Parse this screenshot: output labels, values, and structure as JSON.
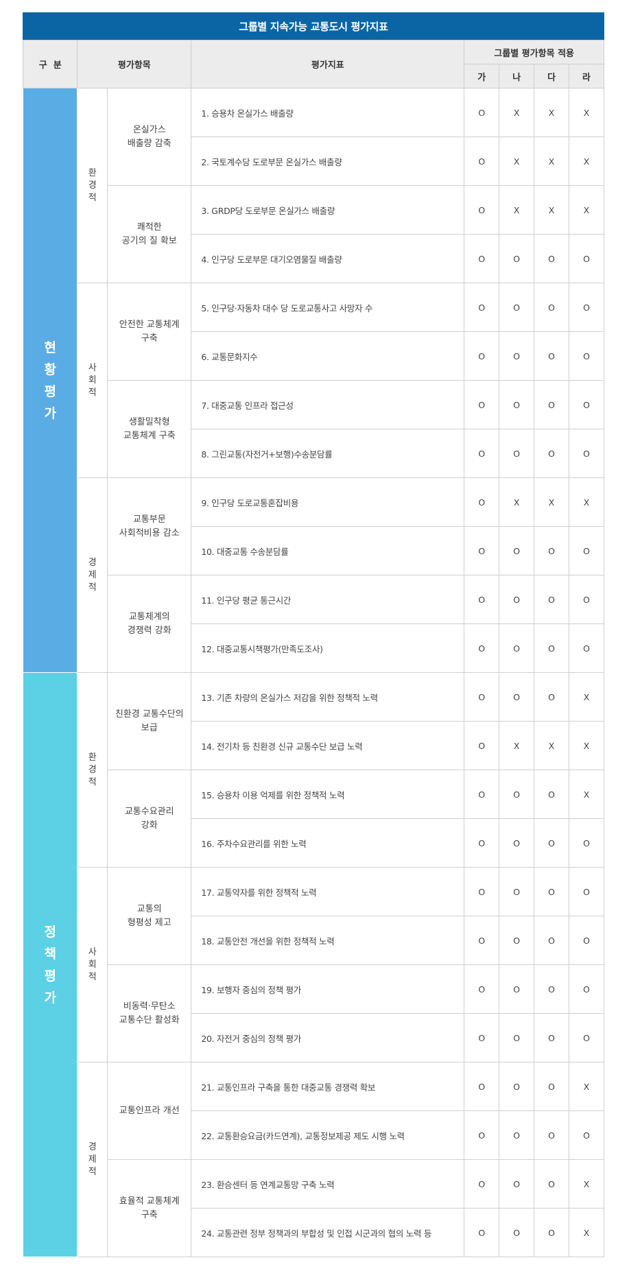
{
  "title": "그룹별 지속가능 교통도시 평가지표",
  "headers": {
    "section": "구  분",
    "items": "평가항목",
    "indicators": "평가지표",
    "apply": "그룹별 평가항목 적용",
    "groups": [
      "가",
      "나",
      "다",
      "라"
    ]
  },
  "sections": [
    {
      "name": "현황평가",
      "chars": [
        "현",
        "황",
        "평",
        "가"
      ]
    },
    {
      "name": "정책평가",
      "chars": [
        "정",
        "책",
        "평",
        "가"
      ]
    }
  ],
  "categories": [
    {
      "name": "환경적",
      "chars": [
        "환",
        "경",
        "적"
      ]
    },
    {
      "name": "사회적",
      "chars": [
        "사",
        "회",
        "적"
      ]
    },
    {
      "name": "경제적",
      "chars": [
        "경",
        "제",
        "적"
      ]
    },
    {
      "name": "환경적",
      "chars": [
        "환",
        "경",
        "적"
      ]
    },
    {
      "name": "사회적",
      "chars": [
        "사",
        "회",
        "적"
      ]
    },
    {
      "name": "경제적",
      "chars": [
        "경",
        "제",
        "적"
      ]
    }
  ],
  "items": [
    {
      "lines": [
        "온실가스",
        "배출량 감축"
      ]
    },
    {
      "lines": [
        "쾌적한",
        "공기의 질 확보"
      ]
    },
    {
      "lines": [
        "안전한 교통체계",
        "구축"
      ]
    },
    {
      "lines": [
        "생활밀착형",
        "교통체계 구축"
      ]
    },
    {
      "lines": [
        "교통부문",
        "사회적비용 감소"
      ]
    },
    {
      "lines": [
        "교통체계의",
        "경쟁력 강화"
      ]
    },
    {
      "lines": [
        "친환경 교통수단의",
        "보급"
      ]
    },
    {
      "lines": [
        "교통수요관리",
        "강화"
      ]
    },
    {
      "lines": [
        "교통의",
        "형평성 제고"
      ]
    },
    {
      "lines": [
        "비동력·무탄소",
        "교통수단 활성화"
      ]
    },
    {
      "lines": [
        "교통인프라 개선"
      ]
    },
    {
      "lines": [
        "효율적 교통체계",
        "구축"
      ]
    }
  ],
  "rows": [
    {
      "indicator": "1. 승용차 온실가스 배출량",
      "marks": [
        "O",
        "X",
        "X",
        "X"
      ]
    },
    {
      "indicator": "2. 국토계수당 도로부문 온실가스 배출량",
      "marks": [
        "O",
        "X",
        "X",
        "X"
      ]
    },
    {
      "indicator": "3. GRDP당 도로부문 온실가스 배출량",
      "marks": [
        "O",
        "X",
        "X",
        "X"
      ]
    },
    {
      "indicator": "4. 인구당 도로부문 대기오염물질 배출량",
      "marks": [
        "O",
        "O",
        "O",
        "O"
      ]
    },
    {
      "indicator": "5. 인구당·자동차 대수 당 도로교통사고 사망자 수",
      "marks": [
        "O",
        "O",
        "O",
        "O"
      ]
    },
    {
      "indicator": "6. 교통문화지수",
      "marks": [
        "O",
        "O",
        "O",
        "O"
      ]
    },
    {
      "indicator": "7. 대중교통 인프라 접근성",
      "marks": [
        "O",
        "O",
        "O",
        "O"
      ]
    },
    {
      "indicator": "8. 그린교통(자전거+보행)수송분담률",
      "marks": [
        "O",
        "O",
        "O",
        "O"
      ]
    },
    {
      "indicator": "9. 인구당 도로교통혼잡비용",
      "marks": [
        "O",
        "X",
        "X",
        "X"
      ]
    },
    {
      "indicator": "10. 대중교통 수송분담률",
      "marks": [
        "O",
        "O",
        "O",
        "O"
      ]
    },
    {
      "indicator": "11. 인구당 평균 통근시간",
      "marks": [
        "O",
        "O",
        "O",
        "O"
      ]
    },
    {
      "indicator": "12. 대중교통시책평가(만족도조사)",
      "marks": [
        "O",
        "O",
        "O",
        "O"
      ]
    },
    {
      "indicator": "13. 기존 차량의 온실가스 저감을 위한 정책적 노력",
      "marks": [
        "O",
        "O",
        "O",
        "X"
      ]
    },
    {
      "indicator": "14. 전기차 등 친환경 신규 교통수단 보급 노력",
      "marks": [
        "O",
        "X",
        "X",
        "X"
      ]
    },
    {
      "indicator": "15. 승용차 이용 억제를 위한 정책적 노력",
      "marks": [
        "O",
        "O",
        "O",
        "X"
      ]
    },
    {
      "indicator": "16. 주차수요관리를 위한 노력",
      "marks": [
        "O",
        "O",
        "O",
        "O"
      ]
    },
    {
      "indicator": "17. 교통약자를 위한 정책적 노력",
      "marks": [
        "O",
        "O",
        "O",
        "O"
      ]
    },
    {
      "indicator": "18. 교통안전 개선을 위한 정책적 노력",
      "marks": [
        "O",
        "O",
        "O",
        "O"
      ]
    },
    {
      "indicator": "19. 보행자 중심의 정책 평가",
      "marks": [
        "O",
        "O",
        "O",
        "O"
      ]
    },
    {
      "indicator": "20. 자전거 중심의 정책 평가",
      "marks": [
        "O",
        "O",
        "O",
        "O"
      ]
    },
    {
      "indicator": "21. 교통인프라 구축을 통한 대중교통 경쟁력 확보",
      "marks": [
        "O",
        "O",
        "O",
        "X"
      ]
    },
    {
      "indicator": "22. 교통환승요금(카드연계), 교통정보제공 제도 시행 노력",
      "marks": [
        "O",
        "O",
        "O",
        "O"
      ]
    },
    {
      "indicator": "23. 환승센터 등 연계교통망 구축 노력",
      "marks": [
        "O",
        "O",
        "O",
        "X"
      ]
    },
    {
      "indicator": "24. 교통관련 정부 정책과의 부합성 및 인접 시군과의 협의 노력 등",
      "marks": [
        "O",
        "O",
        "O",
        "X"
      ]
    }
  ]
}
